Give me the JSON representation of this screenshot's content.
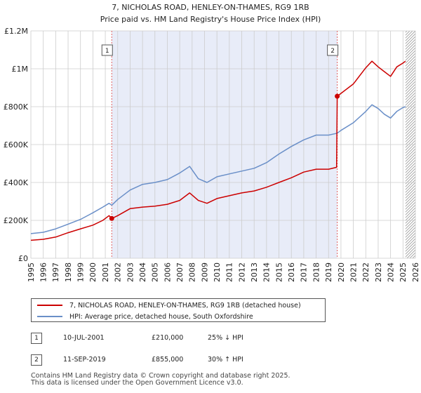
{
  "chart_data": {
    "type": "line",
    "title": "7, NICHOLAS ROAD, HENLEY-ON-THAMES, RG9 1RB",
    "subtitle": "Price paid vs. HM Land Registry's House Price Index (HPI)",
    "xlabel": "",
    "ylabel": "",
    "xlim": [
      1995,
      2026
    ],
    "ylim": [
      0,
      1200000
    ],
    "grid": true,
    "y_ticks": [
      0,
      200000,
      400000,
      600000,
      800000,
      1000000,
      1200000
    ],
    "y_tick_labels": [
      "£0",
      "£200K",
      "£400K",
      "£600K",
      "£800K",
      "£1M",
      "£1.2M"
    ],
    "x_ticks": [
      1995,
      1996,
      1997,
      1998,
      1999,
      2000,
      2001,
      2002,
      2003,
      2004,
      2005,
      2006,
      2007,
      2008,
      2009,
      2010,
      2011,
      2012,
      2013,
      2014,
      2015,
      2016,
      2017,
      2018,
      2019,
      2020,
      2021,
      2022,
      2023,
      2024,
      2025,
      2026
    ],
    "x_tick_labels": [
      "1995",
      "1996",
      "1997",
      "1998",
      "1999",
      "2000",
      "2001",
      "2002",
      "2003",
      "2004",
      "2005",
      "2006",
      "2007",
      "2008",
      "2009",
      "2010",
      "2011",
      "2012",
      "2013",
      "2014",
      "2015",
      "2016",
      "2017",
      "2018",
      "2019",
      "2020",
      "2021",
      "2022",
      "2023",
      "2024",
      "2025",
      "2026"
    ],
    "shaded_span": [
      2001.52,
      2019.7
    ],
    "hatched_from": 2025.2,
    "series": [
      {
        "name": "7, NICHOLAS ROAD, HENLEY-ON-THAMES, RG9 1RB (detached house)",
        "color": "#cc0000",
        "x": [
          1995.0,
          1996.0,
          1997.0,
          1998.0,
          1999.0,
          2000.0,
          2000.8,
          2001.3,
          2001.52,
          2002.0,
          2003.0,
          2004.0,
          2005.0,
          2006.0,
          2007.0,
          2007.8,
          2008.5,
          2009.2,
          2010.0,
          2011.0,
          2012.0,
          2013.0,
          2014.0,
          2015.0,
          2016.0,
          2017.0,
          2018.0,
          2019.0,
          2019.65,
          2019.7,
          2020.0,
          2021.0,
          2022.0,
          2022.5,
          2023.0,
          2023.5,
          2024.0,
          2024.5,
          2025.0,
          2025.2
        ],
        "y": [
          95000,
          100000,
          112000,
          135000,
          155000,
          175000,
          200000,
          225000,
          210000,
          225000,
          262000,
          270000,
          275000,
          285000,
          305000,
          345000,
          305000,
          290000,
          315000,
          330000,
          345000,
          355000,
          375000,
          400000,
          425000,
          455000,
          470000,
          470000,
          480000,
          855000,
          870000,
          920000,
          1005000,
          1040000,
          1010000,
          985000,
          960000,
          1010000,
          1030000,
          1040000
        ]
      },
      {
        "name": "HPI: Average price, detached house, South Oxfordshire",
        "color": "#6a8fc8",
        "x": [
          1995.0,
          1996.0,
          1997.0,
          1998.0,
          1999.0,
          2000.0,
          2000.8,
          2001.3,
          2001.52,
          2002.0,
          2003.0,
          2004.0,
          2005.0,
          2006.0,
          2007.0,
          2007.8,
          2008.5,
          2009.2,
          2010.0,
          2011.0,
          2012.0,
          2013.0,
          2014.0,
          2015.0,
          2016.0,
          2017.0,
          2018.0,
          2019.0,
          2019.7,
          2020.0,
          2021.0,
          2022.0,
          2022.5,
          2023.0,
          2023.5,
          2024.0,
          2024.5,
          2025.0,
          2025.2
        ],
        "y": [
          130000,
          137000,
          155000,
          180000,
          205000,
          240000,
          270000,
          290000,
          280000,
          310000,
          360000,
          390000,
          400000,
          415000,
          450000,
          485000,
          420000,
          400000,
          430000,
          445000,
          460000,
          475000,
          505000,
          550000,
          590000,
          625000,
          650000,
          650000,
          660000,
          675000,
          715000,
          775000,
          810000,
          790000,
          760000,
          740000,
          775000,
          795000,
          800000
        ]
      }
    ],
    "sales": [
      {
        "id": "1",
        "x": 2001.52,
        "y": 210000
      },
      {
        "id": "2",
        "x": 2019.7,
        "y": 855000
      }
    ]
  },
  "legend": {
    "property_label": "7, NICHOLAS ROAD, HENLEY-ON-THAMES, RG9 1RB (detached house)",
    "hpi_label": "HPI: Average price, detached house, South Oxfordshire"
  },
  "transactions": [
    {
      "id": "1",
      "date": "10-JUL-2001",
      "price": "£210,000",
      "hpi": "25% ↓ HPI"
    },
    {
      "id": "2",
      "date": "11-SEP-2019",
      "price": "£855,000",
      "hpi": "30% ↑ HPI"
    }
  ],
  "footer": {
    "line1": "Contains HM Land Registry data © Crown copyright and database right 2025.",
    "line2": "This data is licensed under the Open Government Licence v3.0."
  },
  "colors": {
    "property": "#cc0000",
    "hpi": "#6a8fc8",
    "shade": "#e8ecf8",
    "grid": "#cccccc",
    "vline": "#e06060"
  }
}
